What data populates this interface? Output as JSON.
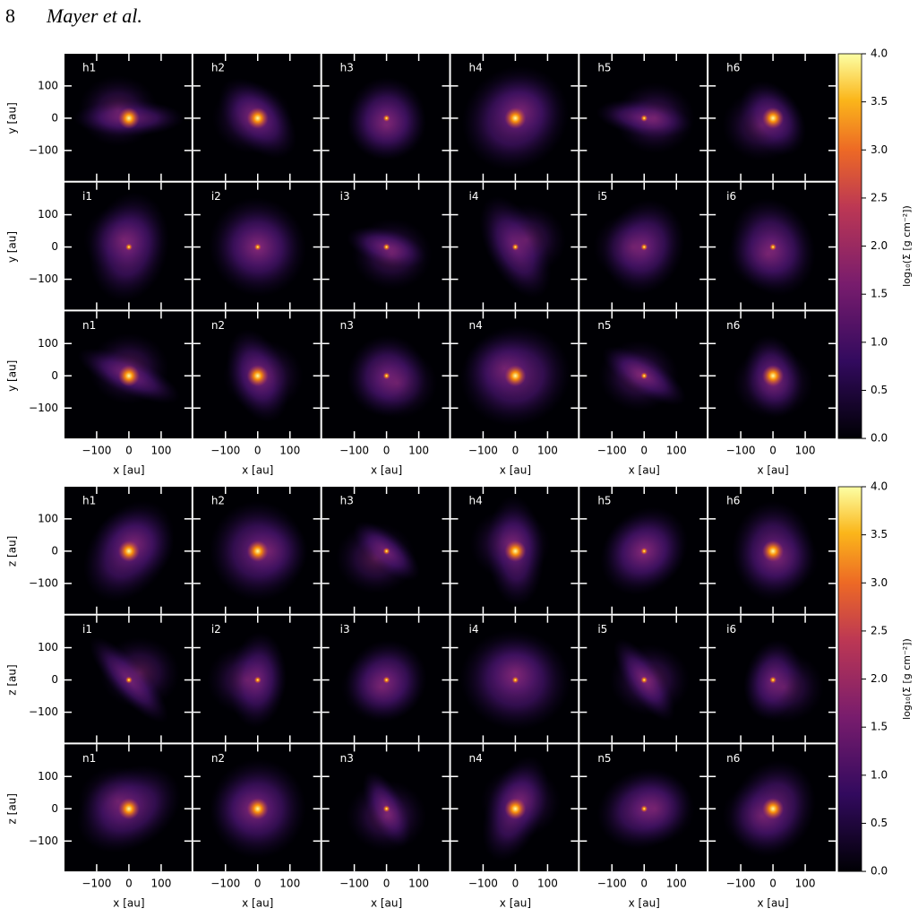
{
  "header": {
    "page_number": "8",
    "running_head": "Mayer et al."
  },
  "figures": [
    {
      "rows": [
        {
          "axis_label": "y [au]",
          "panels": [
            "h1",
            "h2",
            "h3",
            "h4",
            "h5",
            "h6"
          ]
        },
        {
          "axis_label": "y [au]",
          "panels": [
            "i1",
            "i2",
            "i3",
            "i4",
            "i5",
            "i6"
          ]
        },
        {
          "axis_label": "y [au]",
          "panels": [
            "n1",
            "n2",
            "n3",
            "n4",
            "n5",
            "n6"
          ]
        }
      ],
      "x_axis_label": "x [au]",
      "x_ticks": [
        "−100",
        "0",
        "100"
      ],
      "y_ticks": [
        "100",
        "0",
        "−100"
      ],
      "colorbar": {
        "label": "log₁₀(Σ [g cm⁻²])",
        "ticks": [
          "4.0",
          "3.5",
          "3.0",
          "2.5",
          "2.0",
          "1.5",
          "1.0",
          "0.5",
          "0.0"
        ]
      }
    },
    {
      "rows": [
        {
          "axis_label": "z [au]",
          "panels": [
            "h1",
            "h2",
            "h3",
            "h4",
            "h5",
            "h6"
          ]
        },
        {
          "axis_label": "z [au]",
          "panels": [
            "i1",
            "i2",
            "i3",
            "i4",
            "i5",
            "i6"
          ]
        },
        {
          "axis_label": "z [au]",
          "panels": [
            "n1",
            "n2",
            "n3",
            "n4",
            "n5",
            "n6"
          ]
        }
      ],
      "x_axis_label": "x [au]",
      "x_ticks": [
        "−100",
        "0",
        "100"
      ],
      "y_ticks": [
        "100",
        "0",
        "−100"
      ],
      "colorbar": {
        "label": "log₁₀(Σ [g cm⁻²])",
        "ticks": [
          "4.0",
          "3.5",
          "3.0",
          "2.5",
          "2.0",
          "1.5",
          "1.0",
          "0.5",
          "0.0"
        ]
      }
    }
  ]
}
